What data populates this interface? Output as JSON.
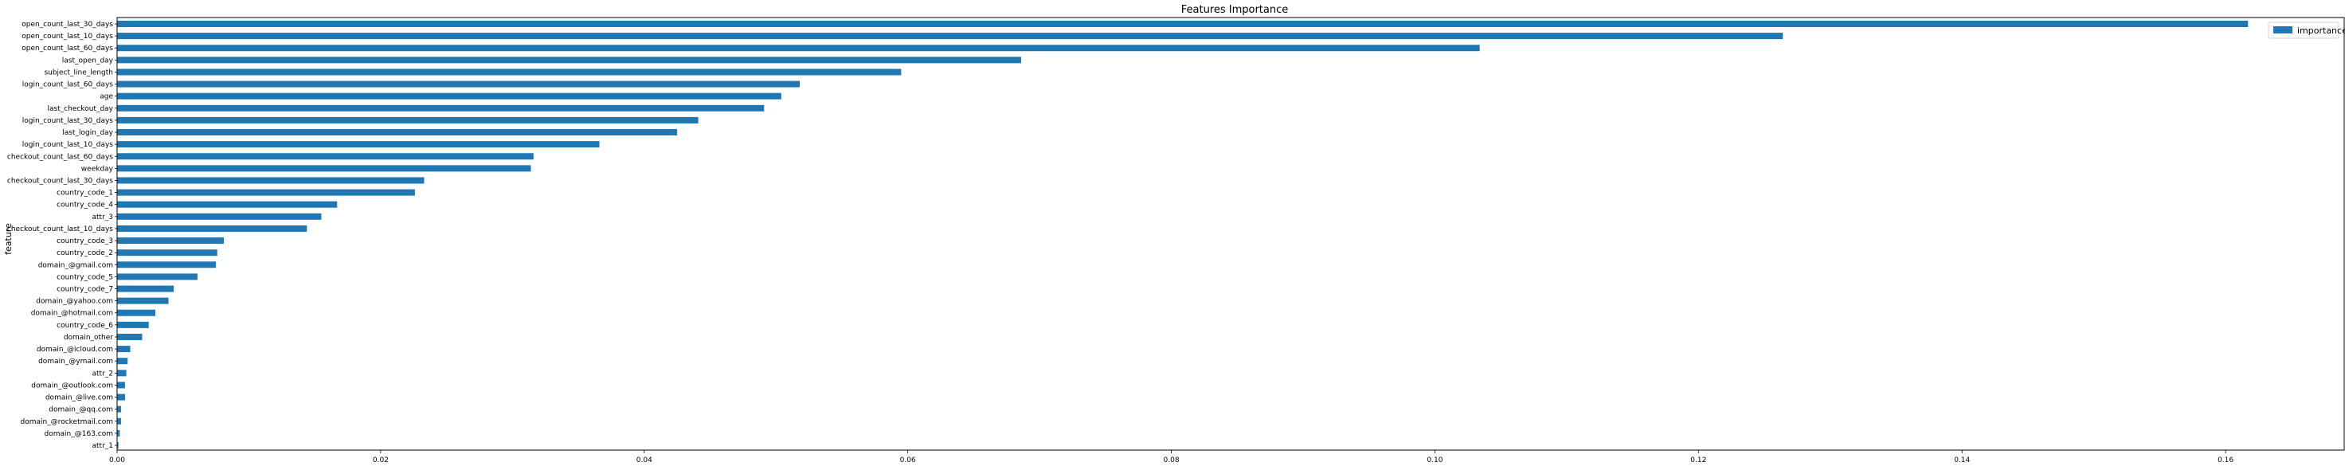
{
  "chart_data": {
    "type": "bar",
    "orientation": "horizontal",
    "title": "Features Importance",
    "ylabel": "feature",
    "xlabel": "",
    "xlim": [
      0,
      0.169
    ],
    "xticks": [
      "0.00",
      "0.02",
      "0.04",
      "0.06",
      "0.08",
      "0.10",
      "0.12",
      "0.14",
      "0.16"
    ],
    "tick_values": [
      0,
      0.02,
      0.04,
      0.06,
      0.08,
      0.1,
      0.12,
      0.14,
      0.16
    ],
    "grid": false,
    "legend": "top-right",
    "series": [
      {
        "name": "importance",
        "color": "#1f77b4",
        "categories": [
          "open_count_last_30_days",
          "open_count_last_10_days",
          "open_count_last_60_days",
          "last_open_day",
          "subject_line_length",
          "login_count_last_60_days",
          "age",
          "last_checkout_day",
          "login_count_last_30_days",
          "last_login_day",
          "login_count_last_10_days",
          "checkout_count_last_60_days",
          "weekday",
          "checkout_count_last_30_days",
          "country_code_1",
          "country_code_4",
          "attr_3",
          "checkout_count_last_10_days",
          "country_code_3",
          "country_code_2",
          "domain_@gmail.com",
          "country_code_5",
          "country_code_7",
          "domain_@yahoo.com",
          "domain_@hotmail.com",
          "country_code_6",
          "domain_other",
          "domain_@icloud.com",
          "domain_@ymail.com",
          "attr_2",
          "domain_@outlook.com",
          "domain_@live.com",
          "domain_@qq.com",
          "domain_@rocketmail.com",
          "domain_@163.com",
          "attr_1"
        ],
        "values": [
          0.1617,
          0.1264,
          0.1034,
          0.0686,
          0.0595,
          0.0518,
          0.0504,
          0.0491,
          0.0441,
          0.0425,
          0.0366,
          0.0316,
          0.0314,
          0.0233,
          0.0226,
          0.0167,
          0.0155,
          0.0144,
          0.0081,
          0.0076,
          0.0075,
          0.0061,
          0.0043,
          0.0039,
          0.0029,
          0.0024,
          0.0019,
          0.001,
          0.0008,
          0.0007,
          0.0006,
          0.0006,
          0.0003,
          0.0003,
          0.0002,
          0.0001
        ]
      }
    ]
  }
}
